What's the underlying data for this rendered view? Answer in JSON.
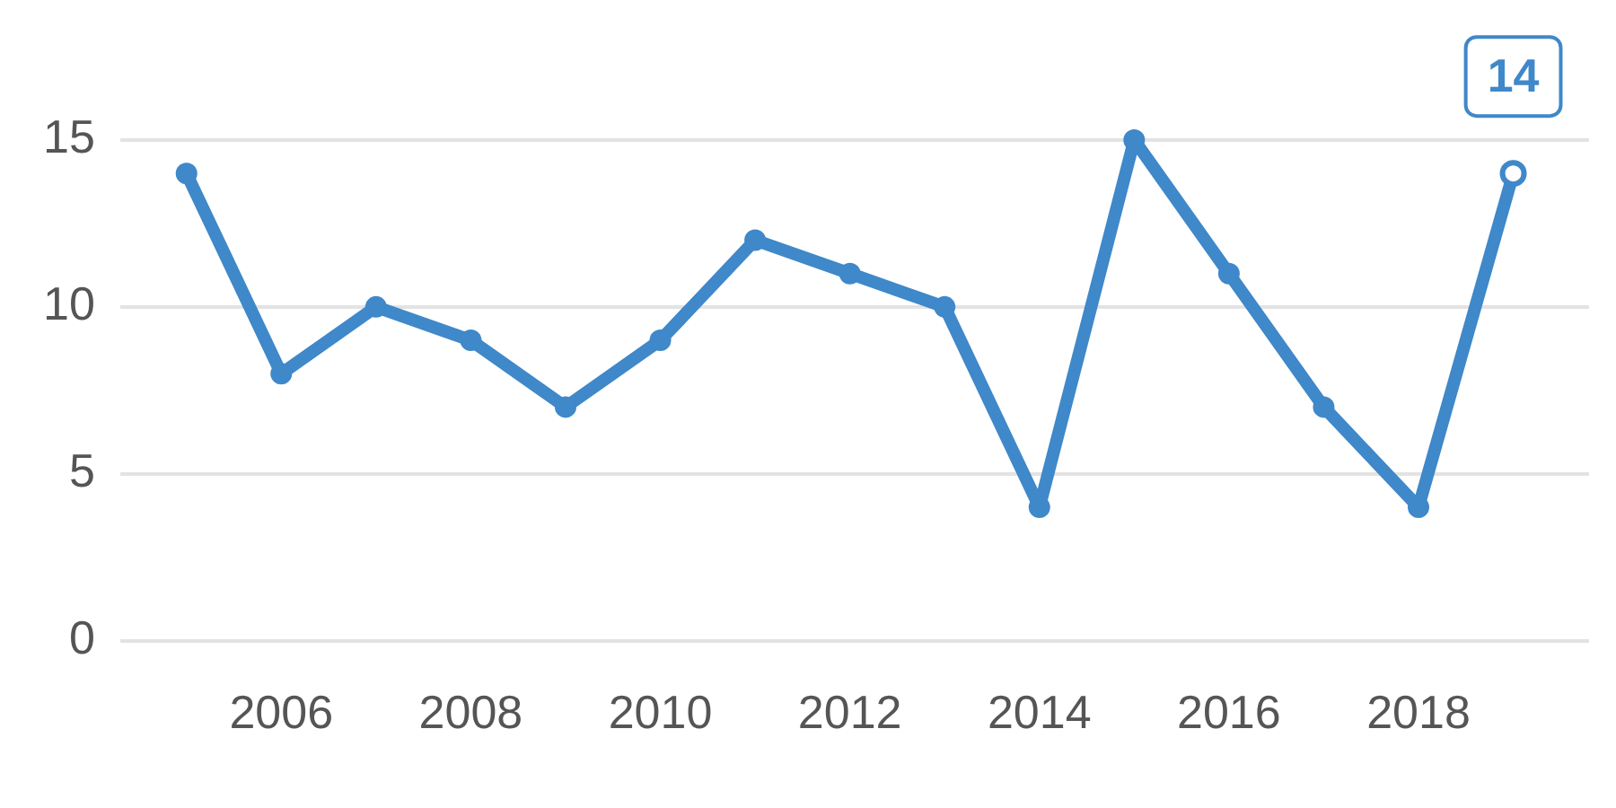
{
  "chart_data": {
    "type": "line",
    "x": [
      2005,
      2006,
      2007,
      2008,
      2009,
      2010,
      2011,
      2012,
      2013,
      2014,
      2015,
      2016,
      2017,
      2018,
      2019
    ],
    "series": [
      {
        "color": "#3f88c9",
        "values": [
          14,
          8,
          10,
          9,
          7,
          9,
          12,
          11,
          10,
          4,
          15,
          11,
          7,
          4,
          14
        ],
        "value_labels": [
          null,
          null,
          null,
          null,
          null,
          null,
          null,
          null,
          null,
          null,
          null,
          null,
          null,
          null,
          "14"
        ]
      }
    ],
    "xlim": [
      2004.3,
      2019.8
    ],
    "xticks": [
      2006,
      2008,
      2010,
      2012,
      2014,
      2016,
      2018
    ],
    "ylim": [
      0,
      15
    ],
    "yticks": [
      0,
      5,
      10,
      15
    ],
    "grid": "y",
    "legend": false,
    "marker": "circle",
    "line_style": "solid"
  }
}
